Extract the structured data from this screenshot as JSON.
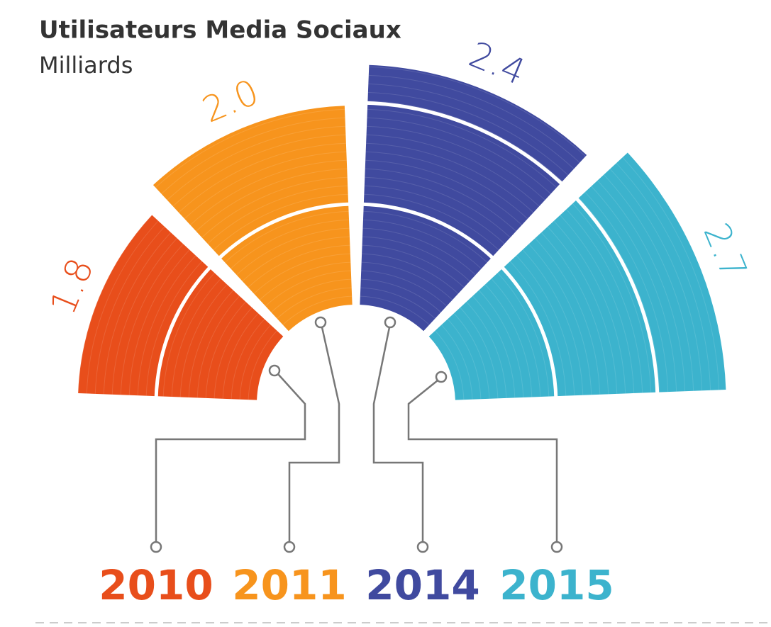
{
  "chart_data": {
    "type": "radial-bar",
    "title": "Utilisateurs Media Sociaux",
    "subtitle": "Milliards",
    "categories": [
      "2010",
      "2011",
      "2014",
      "2015"
    ],
    "values": [
      1.8,
      2.0,
      2.4,
      2.7
    ],
    "value_labels": [
      "1.8",
      "2.0",
      "2.4",
      "2.7"
    ],
    "colors": [
      "#e84e1b",
      "#f7941d",
      "#404a9f",
      "#3cb3cd"
    ]
  }
}
